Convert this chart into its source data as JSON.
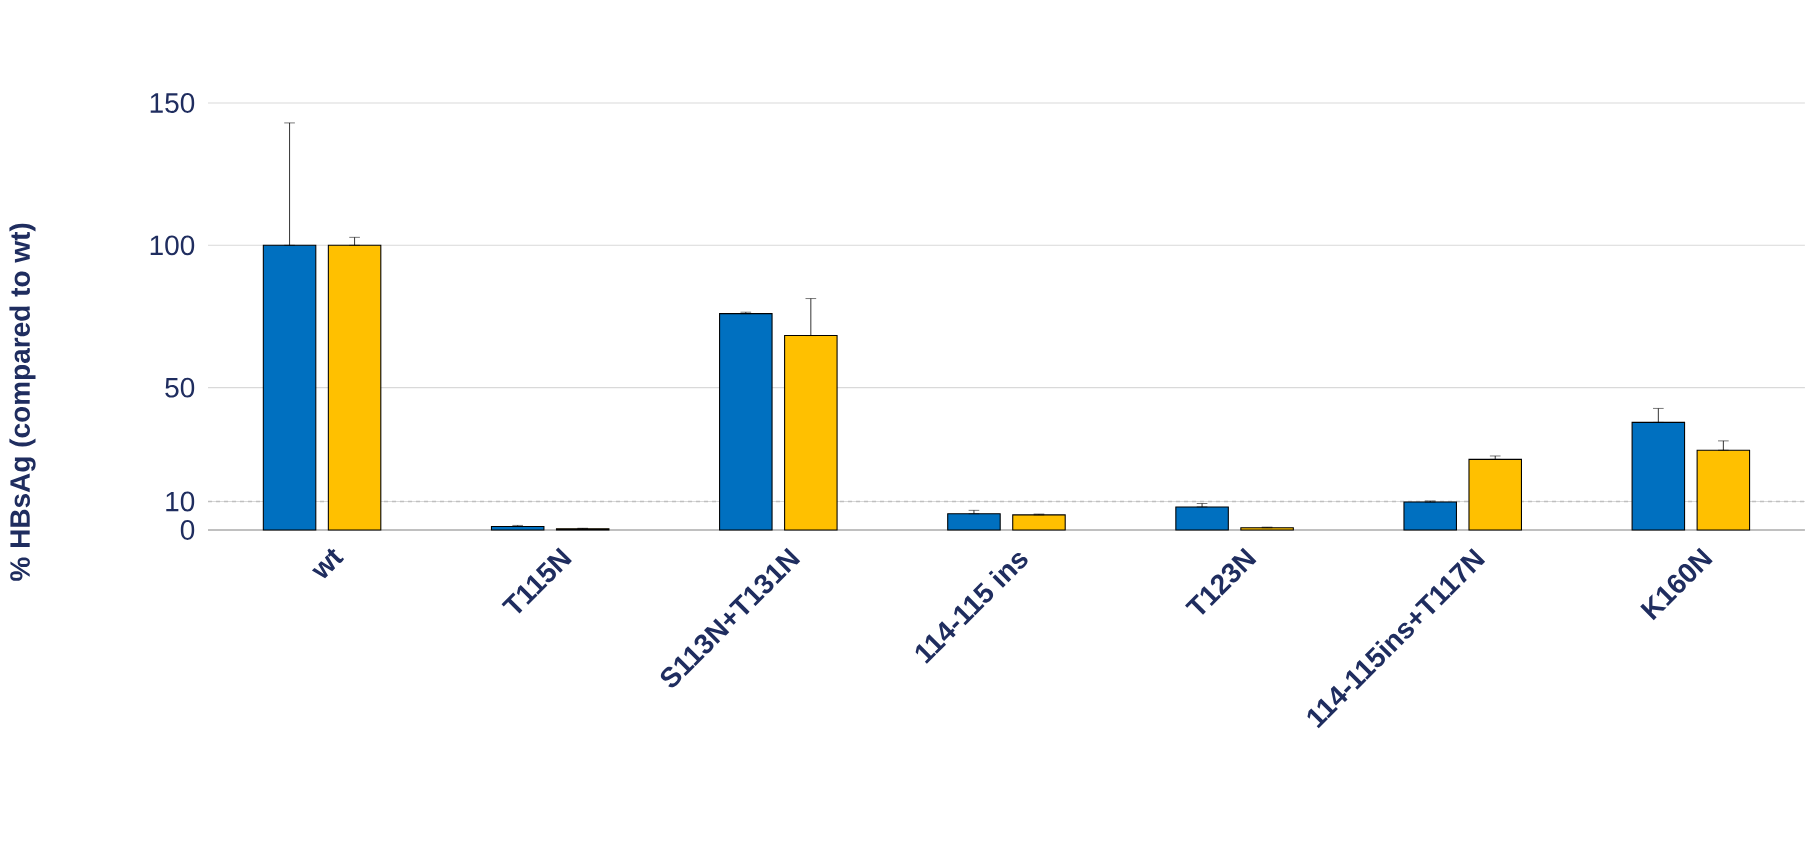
{
  "chart_data": {
    "type": "bar",
    "ylabel": "% HBsAg (compared to wt)",
    "categories": [
      "wt",
      "T115N",
      "S113N+T131N",
      "114-115 ins",
      "T123N",
      "114-115ins+T117N",
      "K160N"
    ],
    "series": [
      {
        "color": "#0070c0",
        "values": [
          100,
          1.2,
          76,
          5.7,
          8.1,
          9.8,
          37.8
        ],
        "errors": [
          [
            100,
            143
          ],
          [
            1.2,
            1.6
          ],
          [
            76,
            76.5
          ],
          [
            5.7,
            6.9
          ],
          [
            8.1,
            9.3
          ],
          [
            9.8,
            10.2
          ],
          [
            37.8,
            42.7
          ]
        ]
      },
      {
        "color": "#ffc000",
        "values": [
          100,
          0.4,
          68.3,
          5.3,
          0.8,
          24.8,
          28
        ],
        "errors": [
          [
            100,
            102.8
          ],
          [
            0.4,
            0.6
          ],
          [
            68.3,
            81.3
          ],
          [
            5.3,
            5.6
          ],
          [
            0.8,
            1.0
          ],
          [
            24.8,
            26
          ],
          [
            28,
            31.3
          ]
        ]
      }
    ],
    "ylim": [
      0,
      150
    ],
    "yticks": [
      0,
      10,
      50,
      100,
      150
    ],
    "grid": "y",
    "ref_lines": [
      {
        "axis": "y",
        "value": 10,
        "color": "#bfbfbf",
        "line_style": "dashed"
      }
    ]
  }
}
